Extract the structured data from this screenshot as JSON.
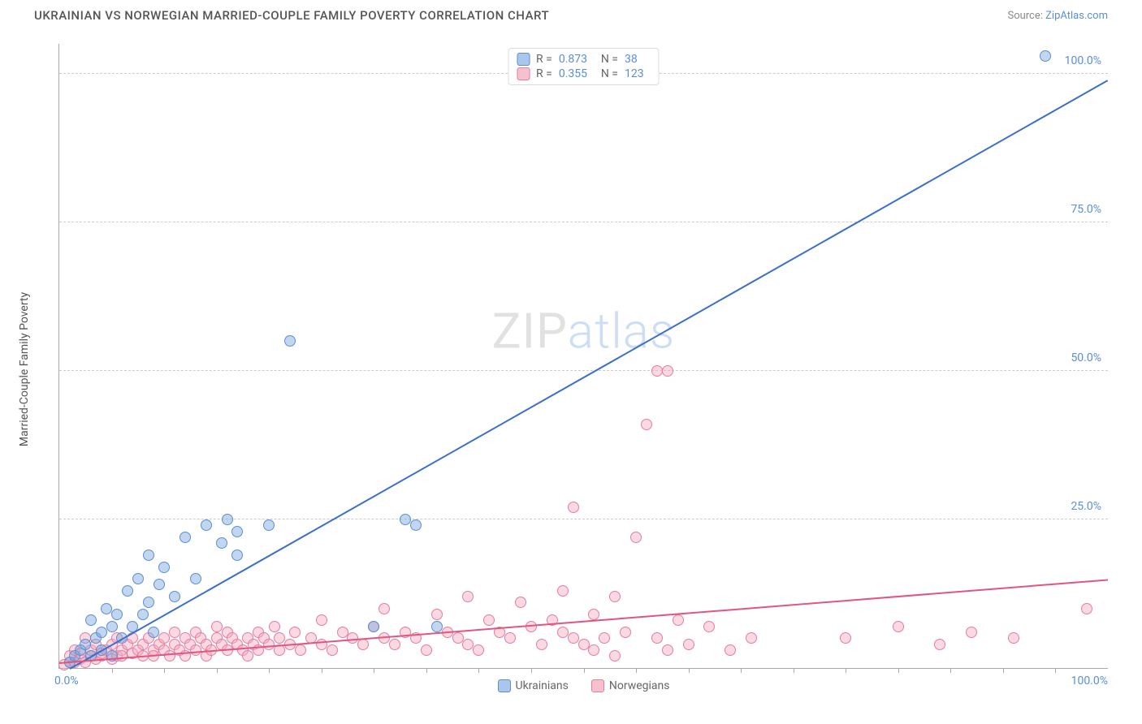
{
  "title": "UKRAINIAN VS NORWEGIAN MARRIED-COUPLE FAMILY POVERTY CORRELATION CHART",
  "source_prefix": "Source: ",
  "source_name": "ZipAtlas.com",
  "ylabel": "Married-Couple Family Poverty",
  "watermark": {
    "part1": "ZIP",
    "part2": "atlas"
  },
  "axes": {
    "xlim": [
      0,
      100
    ],
    "ylim": [
      0,
      105
    ],
    "yticks": [
      25,
      50,
      75,
      100
    ],
    "ytick_labels": [
      "25.0%",
      "50.0%",
      "75.0%",
      "100.0%"
    ],
    "x_start_label": "0.0%",
    "x_end_label": "100.0%",
    "xminor_step": 5,
    "grid_color": "#cccccc"
  },
  "legend_top": [
    {
      "swatch_fill": "#a9c6ec",
      "swatch_border": "#5a8fd6",
      "r_label": "R =",
      "r_value": "0.873",
      "n_label": "N =",
      "n_value": "38"
    },
    {
      "swatch_fill": "#f6c1cf",
      "swatch_border": "#e87ba0",
      "r_label": "R =",
      "r_value": "0.355",
      "n_label": "N =",
      "n_value": "123"
    }
  ],
  "legend_bottom": [
    {
      "swatch_fill": "#a9c6ec",
      "swatch_border": "#5a8fd6",
      "label": "Ukrainians"
    },
    {
      "swatch_fill": "#f6c1cf",
      "swatch_border": "#e87ba0",
      "label": "Norwegians"
    }
  ],
  "series": [
    {
      "name": "Ukrainians",
      "fill": "rgba(120,165,220,0.45)",
      "stroke": "#5a8fd6",
      "marker_radius": 7,
      "regression": {
        "x1": 1,
        "y1": 0,
        "x2": 100,
        "y2": 99,
        "color": "#3b6fc9",
        "width": 2
      },
      "points": [
        [
          1,
          1
        ],
        [
          1.5,
          2
        ],
        [
          2,
          3
        ],
        [
          2.5,
          4
        ],
        [
          3,
          2
        ],
        [
          3,
          8
        ],
        [
          3.5,
          5
        ],
        [
          4,
          3
        ],
        [
          4,
          6
        ],
        [
          4.5,
          10
        ],
        [
          5,
          7
        ],
        [
          5,
          2
        ],
        [
          5.5,
          9
        ],
        [
          6,
          5
        ],
        [
          6.5,
          13
        ],
        [
          7,
          7
        ],
        [
          7.5,
          15
        ],
        [
          8,
          9
        ],
        [
          8.5,
          11
        ],
        [
          8.5,
          19
        ],
        [
          9,
          6
        ],
        [
          9.5,
          14
        ],
        [
          10,
          17
        ],
        [
          11,
          12
        ],
        [
          12,
          22
        ],
        [
          13,
          15
        ],
        [
          14,
          24
        ],
        [
          15.5,
          21
        ],
        [
          16,
          25
        ],
        [
          17,
          23
        ],
        [
          17,
          19
        ],
        [
          20,
          24
        ],
        [
          22,
          55
        ],
        [
          30,
          7
        ],
        [
          33,
          25
        ],
        [
          34,
          24
        ],
        [
          36,
          7
        ],
        [
          94,
          103
        ]
      ]
    },
    {
      "name": "Norwegians",
      "fill": "rgba(244,170,190,0.45)",
      "stroke": "#e87ba0",
      "marker_radius": 7,
      "regression": {
        "x1": 0,
        "y1": 1,
        "x2": 100,
        "y2": 15,
        "color": "#e0567f",
        "width": 2
      },
      "points": [
        [
          0.5,
          0.5
        ],
        [
          1,
          1
        ],
        [
          1,
          2
        ],
        [
          1.5,
          1
        ],
        [
          1.5,
          3
        ],
        [
          2,
          1.5
        ],
        [
          2,
          2.5
        ],
        [
          2.5,
          1
        ],
        [
          2.5,
          5
        ],
        [
          3,
          2
        ],
        [
          3,
          3
        ],
        [
          3.5,
          1.5
        ],
        [
          3.5,
          4
        ],
        [
          4,
          2
        ],
        [
          4,
          2.5
        ],
        [
          4.5,
          3
        ],
        [
          5,
          1.5
        ],
        [
          5,
          4
        ],
        [
          5.5,
          2
        ],
        [
          5.5,
          5
        ],
        [
          6,
          3
        ],
        [
          6,
          2
        ],
        [
          6.5,
          4
        ],
        [
          7,
          2.5
        ],
        [
          7,
          5
        ],
        [
          7.5,
          3
        ],
        [
          8,
          4
        ],
        [
          8,
          2
        ],
        [
          8.5,
          5
        ],
        [
          9,
          3
        ],
        [
          9,
          2
        ],
        [
          9.5,
          4
        ],
        [
          10,
          3
        ],
        [
          10,
          5
        ],
        [
          10.5,
          2
        ],
        [
          11,
          4
        ],
        [
          11,
          6
        ],
        [
          11.5,
          3
        ],
        [
          12,
          5
        ],
        [
          12,
          2
        ],
        [
          12.5,
          4
        ],
        [
          13,
          3
        ],
        [
          13,
          6
        ],
        [
          13.5,
          5
        ],
        [
          14,
          2
        ],
        [
          14,
          4
        ],
        [
          14.5,
          3
        ],
        [
          15,
          5
        ],
        [
          15,
          7
        ],
        [
          15.5,
          4
        ],
        [
          16,
          3
        ],
        [
          16,
          6
        ],
        [
          16.5,
          5
        ],
        [
          17,
          4
        ],
        [
          17.5,
          3
        ],
        [
          18,
          5
        ],
        [
          18,
          2
        ],
        [
          18.5,
          4
        ],
        [
          19,
          6
        ],
        [
          19,
          3
        ],
        [
          19.5,
          5
        ],
        [
          20,
          4
        ],
        [
          20.5,
          7
        ],
        [
          21,
          3
        ],
        [
          21,
          5
        ],
        [
          22,
          4
        ],
        [
          22.5,
          6
        ],
        [
          23,
          3
        ],
        [
          24,
          5
        ],
        [
          25,
          4
        ],
        [
          25,
          8
        ],
        [
          26,
          3
        ],
        [
          27,
          6
        ],
        [
          28,
          5
        ],
        [
          29,
          4
        ],
        [
          30,
          7
        ],
        [
          31,
          10
        ],
        [
          31,
          5
        ],
        [
          32,
          4
        ],
        [
          33,
          6
        ],
        [
          34,
          5
        ],
        [
          35,
          3
        ],
        [
          36,
          9
        ],
        [
          37,
          6
        ],
        [
          38,
          5
        ],
        [
          39,
          12
        ],
        [
          39,
          4
        ],
        [
          40,
          3
        ],
        [
          41,
          8
        ],
        [
          42,
          6
        ],
        [
          43,
          5
        ],
        [
          44,
          11
        ],
        [
          45,
          7
        ],
        [
          46,
          4
        ],
        [
          47,
          8
        ],
        [
          48,
          6
        ],
        [
          48,
          13
        ],
        [
          49,
          5
        ],
        [
          49,
          27
        ],
        [
          50,
          4
        ],
        [
          51,
          9
        ],
        [
          51,
          3
        ],
        [
          52,
          5
        ],
        [
          53,
          12
        ],
        [
          53,
          2
        ],
        [
          54,
          6
        ],
        [
          55,
          22
        ],
        [
          56,
          41
        ],
        [
          57,
          5
        ],
        [
          57,
          50
        ],
        [
          58,
          3
        ],
        [
          58,
          50
        ],
        [
          59,
          8
        ],
        [
          60,
          4
        ],
        [
          62,
          7
        ],
        [
          64,
          3
        ],
        [
          66,
          5
        ],
        [
          75,
          5
        ],
        [
          80,
          7
        ],
        [
          84,
          4
        ],
        [
          87,
          6
        ],
        [
          91,
          5
        ],
        [
          98,
          10
        ]
      ]
    }
  ]
}
